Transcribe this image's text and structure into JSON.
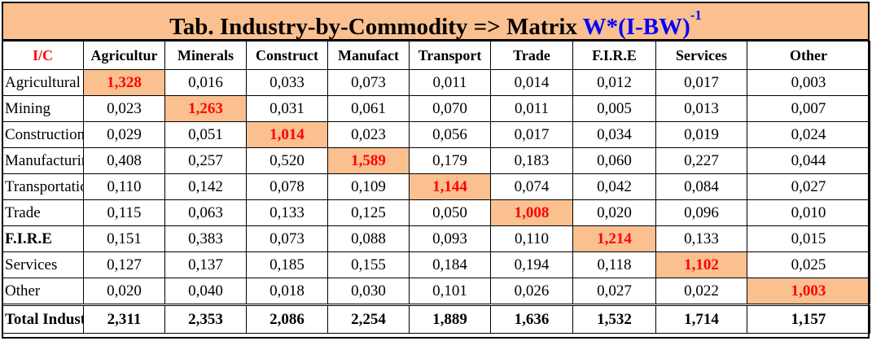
{
  "title": {
    "prefix": "Tab. Industry-by-Commodity => Matrix ",
    "formula": "W*(I-BW)",
    "exponent": "-1"
  },
  "colors": {
    "highlight": "#fac090",
    "diagonal_text": "#ff0000",
    "formula_text": "#0000ff"
  },
  "table": {
    "corner_label": "I/C",
    "columns": [
      "Agricultur",
      "Minerals",
      "Construct",
      "Manufact",
      "Transport",
      "Trade",
      "F.I.R.E",
      "Services",
      "Other"
    ],
    "rows": [
      {
        "label": "Agricultural",
        "values": [
          "1,328",
          "0,016",
          "0,033",
          "0,073",
          "0,011",
          "0,014",
          "0,012",
          "0,017",
          "0,003"
        ]
      },
      {
        "label": "Mining",
        "values": [
          "0,023",
          "1,263",
          "0,031",
          "0,061",
          "0,070",
          "0,011",
          "0,005",
          "0,013",
          "0,007"
        ]
      },
      {
        "label": "Construction",
        "values": [
          "0,029",
          "0,051",
          "1,014",
          "0,023",
          "0,056",
          "0,017",
          "0,034",
          "0,019",
          "0,024"
        ]
      },
      {
        "label": "Manufacturing",
        "values": [
          "0,408",
          "0,257",
          "0,520",
          "1,589",
          "0,179",
          "0,183",
          "0,060",
          "0,227",
          "0,044"
        ]
      },
      {
        "label": "Transportation",
        "values": [
          "0,110",
          "0,142",
          "0,078",
          "0,109",
          "1,144",
          "0,074",
          "0,042",
          "0,084",
          "0,027"
        ]
      },
      {
        "label": "Trade",
        "values": [
          "0,115",
          "0,063",
          "0,133",
          "0,125",
          "0,050",
          "1,008",
          "0,020",
          "0,096",
          "0,010"
        ]
      },
      {
        "label": "F.I.R.E",
        "values": [
          "0,151",
          "0,383",
          "0,073",
          "0,088",
          "0,093",
          "0,110",
          "1,214",
          "0,133",
          "0,015"
        ]
      },
      {
        "label": "Services",
        "values": [
          "0,127",
          "0,137",
          "0,185",
          "0,155",
          "0,184",
          "0,194",
          "0,118",
          "1,102",
          "0,025"
        ]
      },
      {
        "label": "Other",
        "values": [
          "0,020",
          "0,040",
          "0,018",
          "0,030",
          "0,101",
          "0,026",
          "0,027",
          "0,022",
          "1,003"
        ]
      }
    ],
    "total": {
      "label": "Total Industry",
      "values": [
        "2,311",
        "2,353",
        "2,086",
        "2,254",
        "1,889",
        "1,636",
        "1,532",
        "1,714",
        "1,157"
      ]
    }
  }
}
